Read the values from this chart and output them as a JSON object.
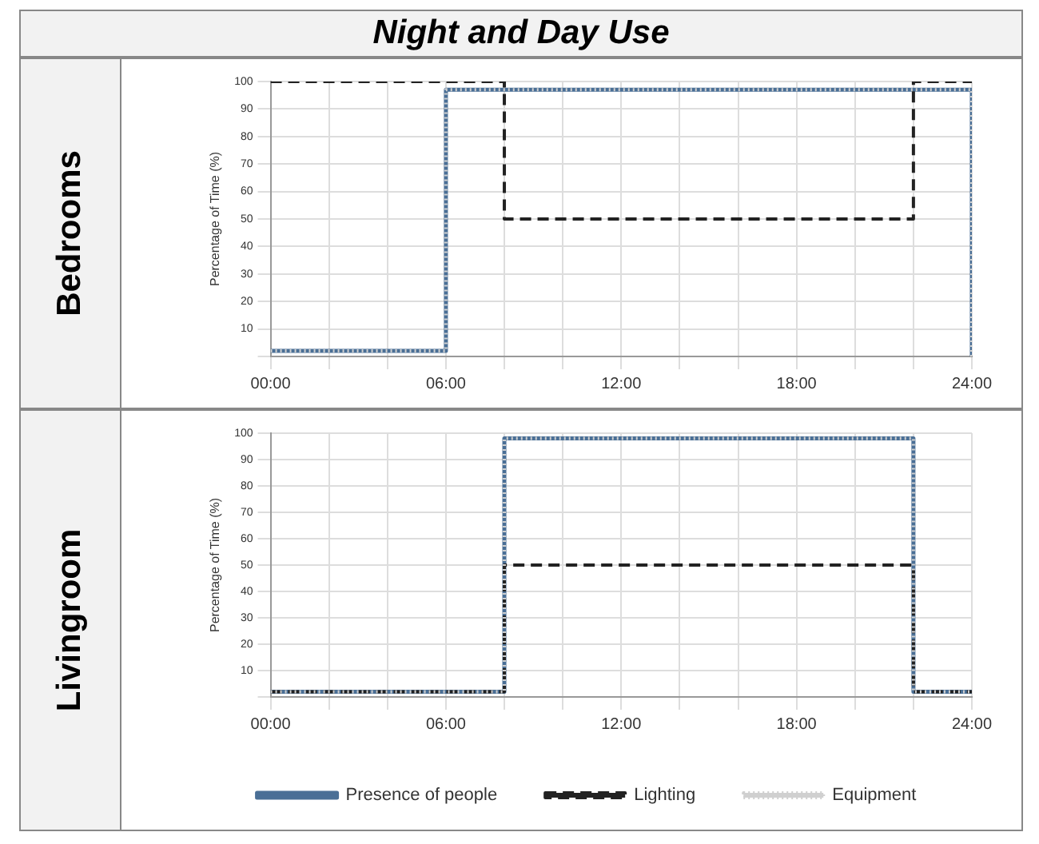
{
  "chart_data": [
    {
      "type": "step",
      "title": "Night and Day Use",
      "subtitle": "Bedrooms",
      "ylabel": "Percentage of Time (%)",
      "xlim": [
        0,
        24
      ],
      "xticks": [
        {
          "value": 0,
          "label": "00:00"
        },
        {
          "value": 2,
          "label": null
        },
        {
          "value": 4,
          "label": null
        },
        {
          "value": 6,
          "label": "06:00"
        },
        {
          "value": 8,
          "label": null
        },
        {
          "value": 10,
          "label": null
        },
        {
          "value": 12,
          "label": "12:00"
        },
        {
          "value": 14,
          "label": null
        },
        {
          "value": 16,
          "label": null
        },
        {
          "value": 18,
          "label": "18:00"
        },
        {
          "value": 20,
          "label": null
        },
        {
          "value": 22,
          "label": null
        },
        {
          "value": 24,
          "label": "24:00"
        }
      ],
      "ylim": [
        0,
        100
      ],
      "yticks": [
        {
          "value": 0,
          "label": null
        },
        10,
        20,
        30,
        40,
        50,
        60,
        70,
        80,
        90,
        100
      ],
      "grid": true,
      "legend": false,
      "series": [
        {
          "color": "#4a6f96",
          "line_style": "solid",
          "x": [
            0,
            6,
            24,
            24
          ],
          "values": [
            2,
            97,
            97,
            0
          ]
        },
        {
          "color": "#222222",
          "line_style": "dashed",
          "x": [
            0,
            8,
            22,
            24
          ],
          "values": [
            100,
            50,
            100,
            100
          ]
        },
        {
          "color": "#d0d0d0",
          "line_style": "dotted",
          "x": [
            0,
            6,
            24,
            24
          ],
          "values": [
            2,
            97,
            97,
            0
          ]
        }
      ]
    },
    {
      "type": "step",
      "subtitle": "Livingroom",
      "ylabel": "Percentage of Time (%)",
      "xlim": [
        0,
        24
      ],
      "xticks": [
        {
          "value": 0,
          "label": "00:00"
        },
        {
          "value": 2,
          "label": null
        },
        {
          "value": 4,
          "label": null
        },
        {
          "value": 6,
          "label": "06:00"
        },
        {
          "value": 8,
          "label": null
        },
        {
          "value": 10,
          "label": null
        },
        {
          "value": 12,
          "label": "12:00"
        },
        {
          "value": 14,
          "label": null
        },
        {
          "value": 16,
          "label": null
        },
        {
          "value": 18,
          "label": "18:00"
        },
        {
          "value": 20,
          "label": null
        },
        {
          "value": 22,
          "label": null
        },
        {
          "value": 24,
          "label": "24:00"
        }
      ],
      "ylim": [
        0,
        100
      ],
      "yticks": [
        {
          "value": 0,
          "label": null
        },
        10,
        20,
        30,
        40,
        50,
        60,
        70,
        80,
        90,
        100
      ],
      "grid": true,
      "legend": "bottom",
      "series": [
        {
          "name": "Presence of people",
          "color": "#4a6f96",
          "line_style": "solid",
          "x": [
            0,
            8,
            22,
            24
          ],
          "values": [
            2,
            98,
            2,
            2
          ]
        },
        {
          "name": "Lighting",
          "color": "#222222",
          "line_style": "dashed",
          "x": [
            0,
            8,
            22,
            24
          ],
          "values": [
            2,
            50,
            2,
            2
          ]
        },
        {
          "name": "Equipment",
          "color": "#d0d0d0",
          "line_style": "dotted",
          "x": [
            0,
            8,
            22,
            24
          ],
          "values": [
            2,
            98,
            2,
            2
          ]
        }
      ]
    }
  ]
}
